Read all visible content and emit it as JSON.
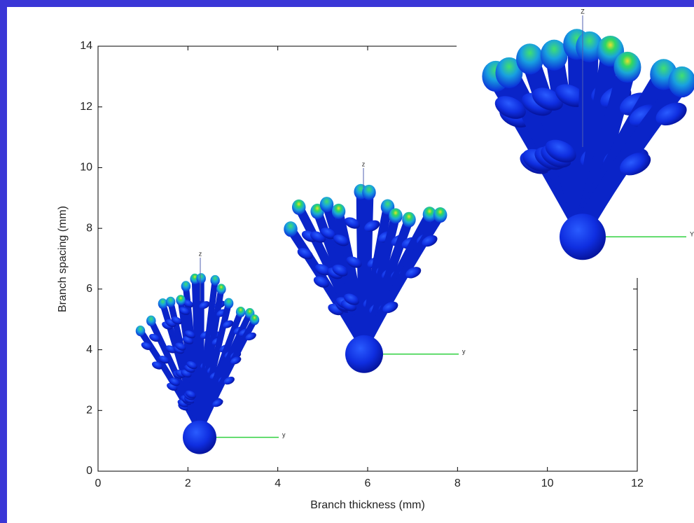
{
  "chart_data": {
    "type": "scatter",
    "x_label": "Branch thickness (mm)",
    "y_label": "Branch spacing (mm)",
    "xlim": [
      0,
      12
    ],
    "xticks": [
      0,
      2,
      4,
      6,
      8,
      10,
      12
    ],
    "ylim": [
      0,
      14
    ],
    "yticks": [
      0,
      2,
      4,
      6,
      8,
      10,
      12,
      14
    ],
    "annotations": [
      "z",
      "y",
      "z",
      "y",
      "Z",
      "Y"
    ]
  }
}
